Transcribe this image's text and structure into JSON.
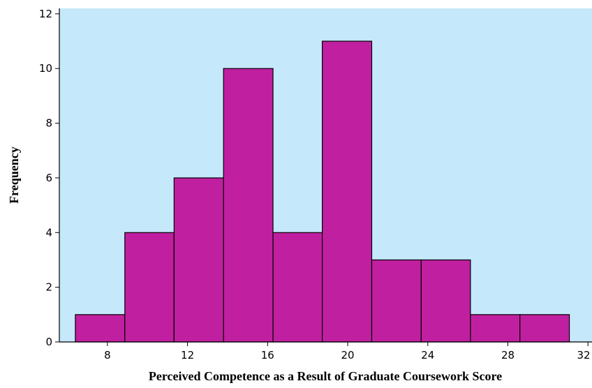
{
  "chart_data": {
    "type": "histogram",
    "xlabel": "Perceived Competence as a Result of Graduate Coursework Score",
    "ylabel": "Frequency",
    "bins": [
      6.4,
      8.87,
      11.33,
      13.8,
      16.27,
      18.73,
      21.2,
      23.67,
      26.13,
      28.6,
      31.07
    ],
    "values": [
      1,
      4,
      6,
      10,
      4,
      11,
      3,
      3,
      1,
      1
    ],
    "color": "#c020a0",
    "background": "#c5e8fb",
    "xlim": [
      5.6,
      32.2
    ],
    "xticks": [
      8,
      12,
      16,
      20,
      24,
      28,
      32
    ],
    "ylim": [
      0,
      12.2
    ],
    "yticks": [
      0,
      2,
      4,
      6,
      8,
      10,
      12
    ]
  }
}
